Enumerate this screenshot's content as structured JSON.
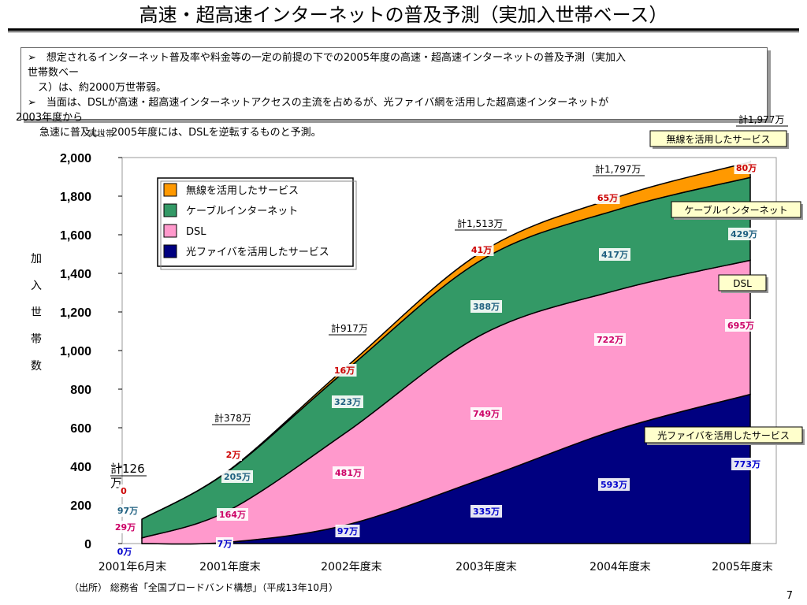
{
  "title": "高速・超高速インターネットの普及予測（実加入世帯ベース）",
  "notes": {
    "line1": "➢　想定されるインターネット普及率や料金等の一定の前提の下での2005年度の高速・超高速インターネットの普及予測（実加入",
    "line1b": "世帯数ベー",
    "line1c": "　ス）は、約2000万世帯弱。",
    "line2": "➢　当面は、DSLが高速・超高速インターネットアクセスの主流を占めるが、光ファイバ網を活用した超高速インターネットが",
    "line2b": "2003年度から",
    "line2c": "急速に普及し、2005年度には、DSLを逆転するものと予測。"
  },
  "source": "（出所） 総務省「全国ブロードバンド構想」（平成13年10月）",
  "slide_number": "7",
  "chart_data": {
    "type": "area",
    "stacked": true,
    "categories": [
      "2001年6月末",
      "2001年度末",
      "2002年度末",
      "2003年度末",
      "2004年度末",
      "2005年度末"
    ],
    "ylabel": "加入世帯数",
    "ylim": [
      0,
      2000
    ],
    "yticks": [
      "0",
      "200",
      "400",
      "600",
      "800",
      "1,000",
      "1,200",
      "1,400",
      "1,600",
      "1,800",
      "2,000"
    ],
    "grid": false,
    "legend_position": "top-left",
    "series": [
      {
        "name": "光ファイバを活用したサービス",
        "color": "#000080",
        "values": [
          0,
          7,
          97,
          335,
          593,
          773
        ],
        "labels": [
          "0万",
          "7万",
          "97万",
          "335万",
          "593万",
          "773万"
        ]
      },
      {
        "name": "DSL",
        "color": "#FF99CC",
        "values": [
          29,
          164,
          481,
          749,
          722,
          695
        ],
        "labels": [
          "29万",
          "164万",
          "481万",
          "749万",
          "722万",
          "695万"
        ]
      },
      {
        "name": "ケーブルインターネット",
        "color": "#339966",
        "values": [
          97,
          205,
          323,
          388,
          417,
          429
        ],
        "labels": [
          "97万",
          "205万",
          "323万",
          "388万",
          "417万",
          "429万"
        ]
      },
      {
        "name": "無線を活用したサービス",
        "color": "#FF9900",
        "values": [
          0,
          2,
          16,
          41,
          65,
          80
        ],
        "labels": [
          "0",
          "2万",
          "16万",
          "41万",
          "65万",
          "80万"
        ]
      }
    ],
    "totals": [
      "計126万",
      "計378万",
      "計917万",
      "計1,513万",
      "計1,797万",
      "計1,977万"
    ],
    "callouts": {
      "wireless": "無線を活用したサービス",
      "cable": "ケーブルインターネット",
      "dsl": "DSL",
      "fiber": "光ファイバを活用したサービス"
    },
    "legend_title_overlap": "実世帯"
  }
}
